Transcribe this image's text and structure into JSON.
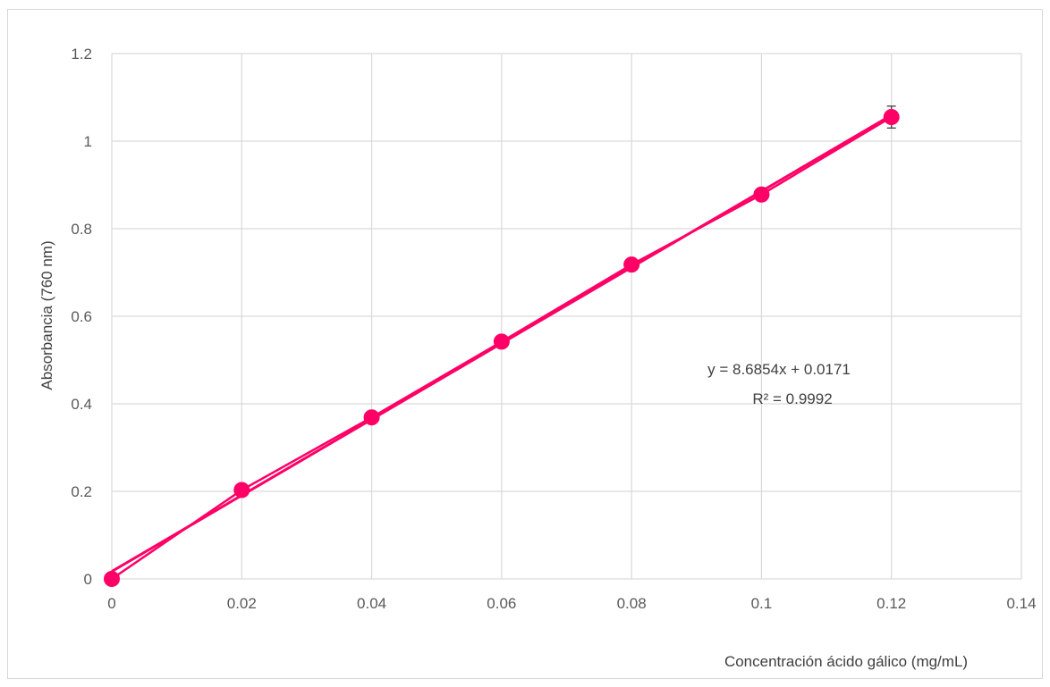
{
  "chart_data": {
    "type": "scatter",
    "xlabel": "Concentración ácido gálico (mg/mL)",
    "ylabel": "Absorbancia (760 nm)",
    "xlim": [
      0,
      0.14
    ],
    "ylim": [
      0,
      1.2
    ],
    "xticks": [
      "0",
      "0.02",
      "0.04",
      "0.06",
      "0.08",
      "0.1",
      "0.12",
      "0.14"
    ],
    "yticks": [
      "0",
      "0.2",
      "0.4",
      "0.6",
      "0.8",
      "1",
      "1.2"
    ],
    "xtick_values": [
      0,
      0.02,
      0.04,
      0.06,
      0.08,
      0.1,
      0.12,
      0.14
    ],
    "ytick_values": [
      0,
      0.2,
      0.4,
      0.6,
      0.8,
      1,
      1.2
    ],
    "grid": true,
    "series": [
      {
        "x": [
          0,
          0.02,
          0.04,
          0.06,
          0.08,
          0.1,
          0.12
        ],
        "y": [
          0.0,
          0.203,
          0.369,
          0.542,
          0.718,
          0.878,
          1.055
        ],
        "error": [
          0,
          0,
          0,
          0,
          0,
          0,
          0.025
        ],
        "color": "#ff0066",
        "marker": "circle",
        "connected": true
      }
    ],
    "trendline": {
      "type": "linear",
      "slope": 8.6854,
      "intercept": 0.0171,
      "color": "#ff0066",
      "equation": "y = 8.6854x + 0.0171",
      "r_squared": "R² = 0.9992"
    },
    "colors": {
      "grid": "#d9d9d9",
      "tick_text": "#595959",
      "error_bar": "#404040"
    }
  }
}
